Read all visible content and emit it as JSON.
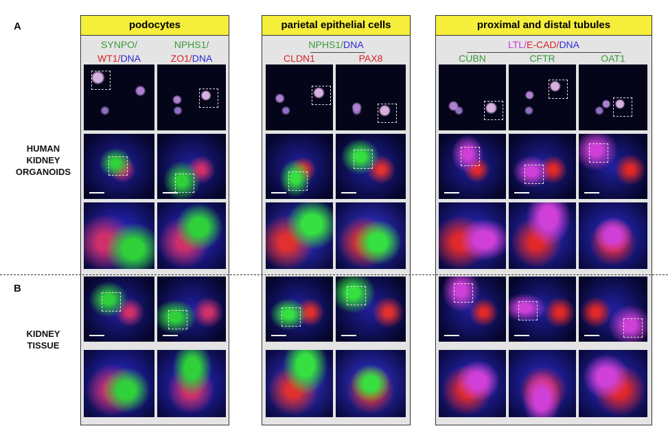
{
  "labels": {
    "a": "A",
    "b": "B",
    "organoids": [
      "HUMAN",
      "KIDNEY",
      "ORGANOIDS"
    ],
    "tissue": [
      "KIDNEY",
      "TISSUE"
    ]
  },
  "panels": [
    {
      "title": "podocytes",
      "columns": [
        {
          "line1": [
            {
              "t": "SYNPO/",
              "c": "g"
            }
          ],
          "line2": [
            {
              "t": "WT1/",
              "c": "r"
            },
            {
              "t": "DNA",
              "c": "b"
            }
          ]
        },
        {
          "line1": [
            {
              "t": "NPHS1/",
              "c": "g"
            }
          ],
          "line2": [
            {
              "t": "ZO1/",
              "c": "r"
            },
            {
              "t": "DNA",
              "c": "b"
            }
          ]
        }
      ]
    },
    {
      "title": "parietal epithelial cells",
      "shared": [
        {
          "t": "NPHS1/",
          "c": "g"
        },
        {
          "t": "DNA",
          "c": "b"
        }
      ],
      "columns": [
        {
          "line2": [
            {
              "t": "CLDN1",
              "c": "r"
            }
          ]
        },
        {
          "line2": [
            {
              "t": "PAX8",
              "c": "r"
            }
          ]
        }
      ]
    },
    {
      "title": "proximal and distal tubules",
      "shared": [
        {
          "t": "LTL/",
          "c": "m"
        },
        {
          "t": "E-CAD/",
          "c": "r"
        },
        {
          "t": "DNA",
          "c": "b"
        }
      ],
      "columns": [
        {
          "line2": [
            {
              "t": "CUBN",
              "c": "g"
            }
          ]
        },
        {
          "line2": [
            {
              "t": "CFTR",
              "c": "g"
            }
          ]
        },
        {
          "line2": [
            {
              "t": "OAT1",
              "c": "g"
            }
          ]
        }
      ]
    }
  ]
}
